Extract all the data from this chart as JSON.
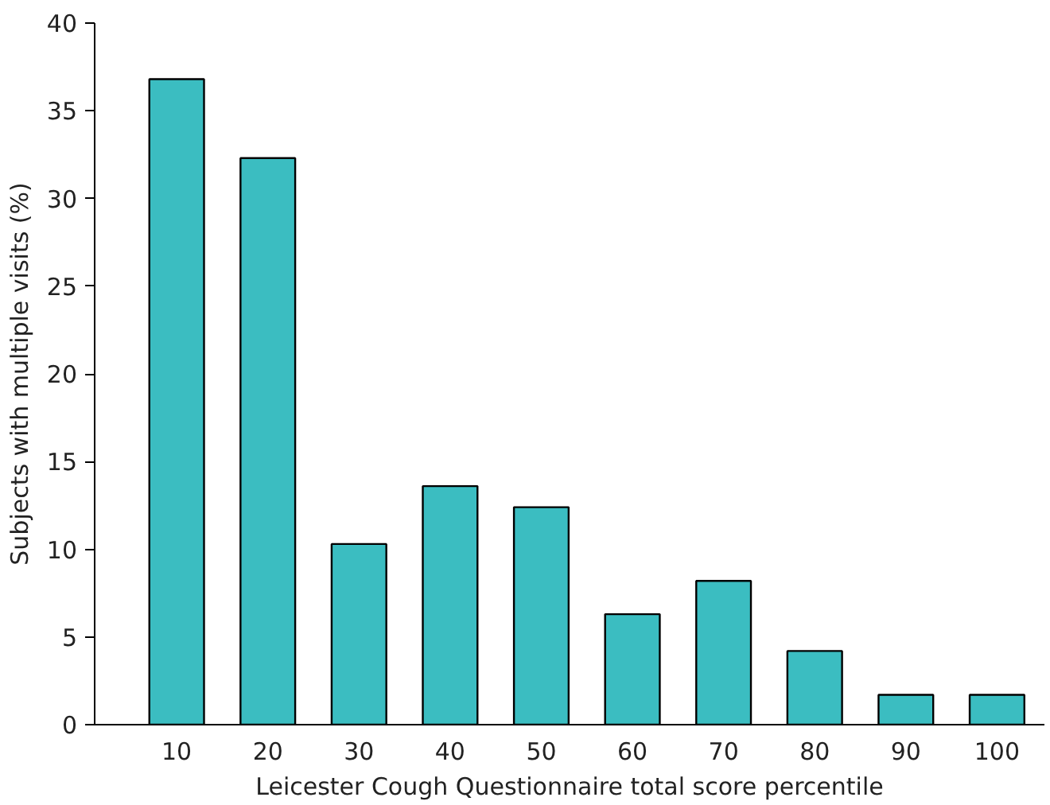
{
  "chart_data": {
    "type": "bar",
    "xlabel": "Leicester Cough Questionnaire total score percentile",
    "ylabel": "Subjects with multiple visits (%)",
    "categories": [
      "10",
      "20",
      "30",
      "40",
      "50",
      "60",
      "70",
      "80",
      "90",
      "100"
    ],
    "values": [
      36.8,
      32.3,
      10.3,
      13.6,
      12.4,
      6.3,
      8.2,
      4.2,
      1.7,
      1.7
    ],
    "color": "#3bbdc1",
    "ylim": [
      0,
      40
    ],
    "yticks": [
      0,
      5,
      10,
      15,
      20,
      25,
      30,
      35,
      40
    ],
    "grid": false
  }
}
